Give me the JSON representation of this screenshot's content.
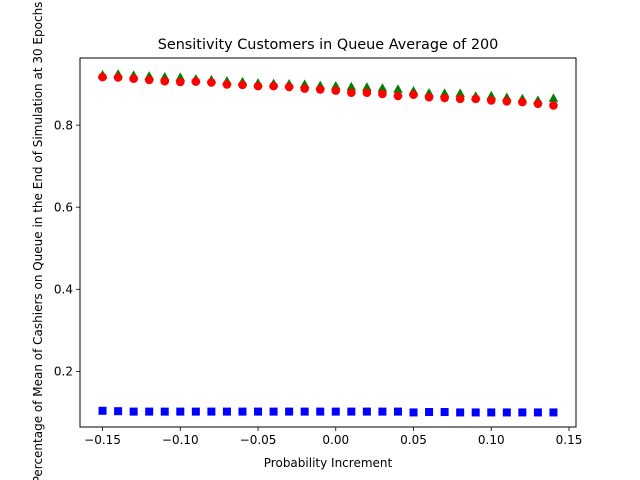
{
  "chart_data": {
    "type": "scatter",
    "title": "Sensitivity Customers in Queue Average of 200",
    "xlabel": "Probability Increment",
    "ylabel": "Percentage of Mean of Cashiers on Queue in the End of Simulation at 30 Epochs",
    "xlim": [
      -0.1645,
      0.1545
    ],
    "ylim": [
      0.0645,
      0.9635
    ],
    "xticks": [
      -0.15,
      -0.1,
      -0.05,
      0.0,
      0.05,
      0.1,
      0.15
    ],
    "xtick_labels": [
      "−0.15",
      "−0.10",
      "−0.05",
      "0.00",
      "0.05",
      "0.10",
      "0.15"
    ],
    "yticks": [
      0.2,
      0.4,
      0.6,
      0.8
    ],
    "ytick_labels": [
      "0.2",
      "0.4",
      "0.6",
      "0.8"
    ],
    "grid": false,
    "x": [
      -0.15,
      -0.14,
      -0.13,
      -0.12,
      -0.11,
      -0.1,
      -0.09,
      -0.08,
      -0.07,
      -0.06,
      -0.05,
      -0.04,
      -0.03,
      -0.02,
      -0.01,
      0.0,
      0.01,
      0.02,
      0.03,
      0.04,
      0.05,
      0.06,
      0.07,
      0.08,
      0.09,
      0.1,
      0.11,
      0.12,
      0.13,
      0.14
    ],
    "series": [
      {
        "marker": "triangle",
        "color": "#008000",
        "values": [
          0.921,
          0.923,
          0.92,
          0.918,
          0.916,
          0.915,
          0.911,
          0.909,
          0.906,
          0.904,
          0.901,
          0.9,
          0.899,
          0.898,
          0.895,
          0.894,
          0.892,
          0.891,
          0.889,
          0.886,
          0.882,
          0.877,
          0.876,
          0.876,
          0.869,
          0.87,
          0.866,
          0.863,
          0.859,
          0.864
        ]
      },
      {
        "marker": "circle",
        "color": "#ff0000",
        "values": [
          0.917,
          0.916,
          0.913,
          0.91,
          0.907,
          0.905,
          0.906,
          0.904,
          0.899,
          0.898,
          0.895,
          0.895,
          0.893,
          0.889,
          0.887,
          0.884,
          0.879,
          0.879,
          0.876,
          0.871,
          0.874,
          0.868,
          0.866,
          0.864,
          0.864,
          0.86,
          0.858,
          0.856,
          0.852,
          0.848
        ]
      },
      {
        "marker": "square",
        "color": "#0000ff",
        "values": [
          0.104,
          0.103,
          0.102,
          0.102,
          0.102,
          0.102,
          0.102,
          0.102,
          0.102,
          0.102,
          0.102,
          0.102,
          0.102,
          0.102,
          0.102,
          0.102,
          0.102,
          0.102,
          0.102,
          0.102,
          0.1,
          0.101,
          0.101,
          0.1,
          0.1,
          0.1,
          0.1,
          0.1,
          0.1,
          0.1
        ]
      }
    ]
  }
}
